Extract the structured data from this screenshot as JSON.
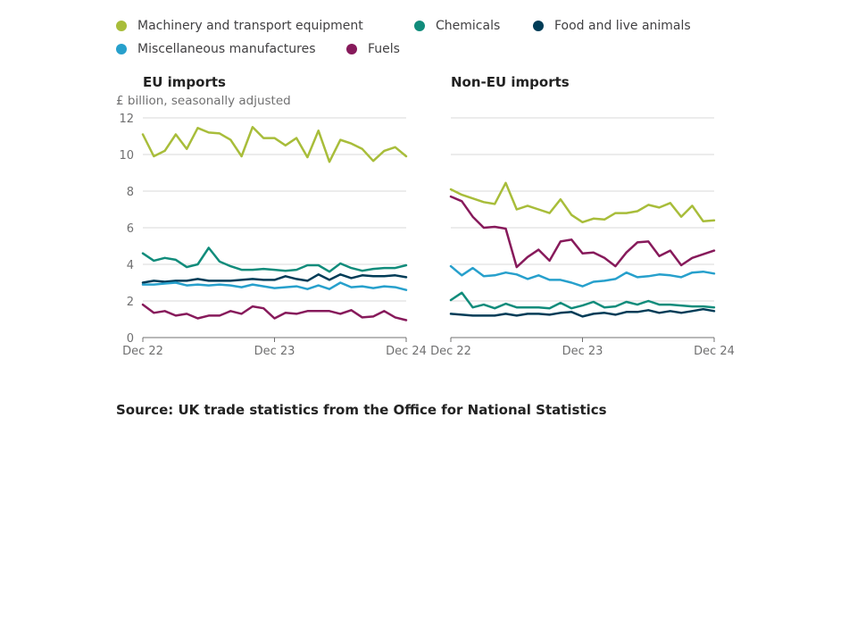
{
  "legend": [
    {
      "name": "Machinery and transport equipment",
      "color": "#a8bd3a"
    },
    {
      "name": "Chemicals",
      "color": "#118c7b"
    },
    {
      "name": "Food and live animals",
      "color": "#003c57"
    },
    {
      "name": "Miscellaneous manufactures",
      "color": "#27a0cc"
    },
    {
      "name": "Fuels",
      "color": "#871a5b"
    }
  ],
  "source": "Source: UK trade statistics from the Office for National Statistics",
  "chart_data": [
    {
      "type": "line",
      "title": "EU imports",
      "ylabel": "£ billion, seasonally adjusted",
      "x_ticks": [
        "Dec 22",
        "Dec 23",
        "Dec 24"
      ],
      "ylim": [
        0,
        12
      ],
      "y_ticks": [
        0,
        2,
        4,
        6,
        8,
        10,
        12
      ],
      "grid": true,
      "x": [
        "Dec 22",
        "Jan 23",
        "Feb 23",
        "Mar 23",
        "Apr 23",
        "May 23",
        "Jun 23",
        "Jul 23",
        "Aug 23",
        "Sep 23",
        "Oct 23",
        "Nov 23",
        "Dec 23",
        "Jan 24",
        "Feb 24",
        "Mar 24",
        "Apr 24",
        "May 24",
        "Jun 24",
        "Jul 24",
        "Aug 24",
        "Sep 24",
        "Oct 24",
        "Nov 24",
        "Dec 24"
      ],
      "series": [
        {
          "name": "Machinery and transport equipment",
          "color": "#a8bd3a",
          "values": [
            11.1,
            9.9,
            10.2,
            11.1,
            10.3,
            11.45,
            11.2,
            11.15,
            10.8,
            9.9,
            11.5,
            10.9,
            10.9,
            10.5,
            10.9,
            9.85,
            11.3,
            9.6,
            10.8,
            10.6,
            10.3,
            9.65,
            10.2,
            10.4,
            9.9
          ]
        },
        {
          "name": "Chemicals",
          "color": "#118c7b",
          "values": [
            4.6,
            4.2,
            4.35,
            4.25,
            3.85,
            4.0,
            4.9,
            4.15,
            3.9,
            3.7,
            3.7,
            3.75,
            3.7,
            3.65,
            3.7,
            3.95,
            3.95,
            3.6,
            4.05,
            3.8,
            3.65,
            3.75,
            3.8,
            3.8,
            3.95
          ]
        },
        {
          "name": "Food and live animals",
          "color": "#003c57",
          "values": [
            3.0,
            3.1,
            3.05,
            3.1,
            3.1,
            3.2,
            3.1,
            3.1,
            3.1,
            3.15,
            3.2,
            3.15,
            3.15,
            3.35,
            3.2,
            3.1,
            3.45,
            3.15,
            3.45,
            3.25,
            3.4,
            3.35,
            3.35,
            3.4,
            3.3
          ]
        },
        {
          "name": "Miscellaneous manufactures",
          "color": "#27a0cc",
          "values": [
            2.9,
            2.9,
            2.95,
            3.0,
            2.85,
            2.9,
            2.85,
            2.9,
            2.85,
            2.75,
            2.9,
            2.8,
            2.7,
            2.75,
            2.8,
            2.65,
            2.85,
            2.65,
            3.0,
            2.75,
            2.8,
            2.7,
            2.8,
            2.75,
            2.6
          ]
        },
        {
          "name": "Fuels",
          "color": "#871a5b",
          "values": [
            1.8,
            1.35,
            1.45,
            1.2,
            1.3,
            1.05,
            1.2,
            1.2,
            1.45,
            1.3,
            1.7,
            1.6,
            1.05,
            1.35,
            1.3,
            1.45,
            1.45,
            1.45,
            1.3,
            1.5,
            1.1,
            1.15,
            1.45,
            1.1,
            0.95
          ]
        }
      ]
    },
    {
      "type": "line",
      "title": "Non-EU imports",
      "x_ticks": [
        "Dec 22",
        "Dec 23",
        "Dec 24"
      ],
      "ylim": [
        0,
        12
      ],
      "y_ticks": [
        0,
        2,
        4,
        6,
        8,
        10,
        12
      ],
      "grid": true,
      "x": [
        "Dec 22",
        "Jan 23",
        "Feb 23",
        "Mar 23",
        "Apr 23",
        "May 23",
        "Jun 23",
        "Jul 23",
        "Aug 23",
        "Sep 23",
        "Oct 23",
        "Nov 23",
        "Dec 23",
        "Jan 24",
        "Feb 24",
        "Mar 24",
        "Apr 24",
        "May 24",
        "Jun 24",
        "Jul 24",
        "Aug 24",
        "Sep 24",
        "Oct 24",
        "Nov 24",
        "Dec 24"
      ],
      "series": [
        {
          "name": "Machinery and transport equipment",
          "color": "#a8bd3a",
          "values": [
            8.1,
            7.8,
            7.6,
            7.4,
            7.3,
            8.45,
            7.0,
            7.2,
            7.0,
            6.8,
            7.55,
            6.7,
            6.3,
            6.5,
            6.45,
            6.8,
            6.8,
            6.9,
            7.25,
            7.1,
            7.35,
            6.6,
            7.2,
            6.35,
            6.4
          ]
        },
        {
          "name": "Chemicals",
          "color": "#118c7b",
          "values": [
            2.05,
            2.45,
            1.65,
            1.8,
            1.6,
            1.85,
            1.65,
            1.65,
            1.65,
            1.6,
            1.9,
            1.6,
            1.75,
            1.95,
            1.65,
            1.7,
            1.95,
            1.8,
            2.0,
            1.8,
            1.8,
            1.75,
            1.7,
            1.7,
            1.65
          ]
        },
        {
          "name": "Food and live animals",
          "color": "#003c57",
          "values": [
            1.3,
            1.25,
            1.2,
            1.2,
            1.2,
            1.3,
            1.2,
            1.3,
            1.3,
            1.25,
            1.35,
            1.4,
            1.15,
            1.3,
            1.35,
            1.25,
            1.4,
            1.4,
            1.5,
            1.35,
            1.45,
            1.35,
            1.45,
            1.55,
            1.45
          ]
        },
        {
          "name": "Miscellaneous manufactures",
          "color": "#27a0cc",
          "values": [
            3.9,
            3.4,
            3.8,
            3.35,
            3.4,
            3.55,
            3.45,
            3.2,
            3.4,
            3.15,
            3.15,
            3.0,
            2.8,
            3.05,
            3.1,
            3.2,
            3.55,
            3.3,
            3.35,
            3.45,
            3.4,
            3.3,
            3.55,
            3.6,
            3.5
          ]
        },
        {
          "name": "Fuels",
          "color": "#871a5b",
          "values": [
            7.7,
            7.45,
            6.6,
            6.0,
            6.05,
            5.95,
            3.85,
            4.4,
            4.8,
            4.2,
            5.25,
            5.35,
            4.6,
            4.65,
            4.35,
            3.9,
            4.65,
            5.2,
            5.25,
            4.45,
            4.75,
            3.95,
            4.35,
            4.55,
            4.75
          ]
        }
      ]
    }
  ]
}
